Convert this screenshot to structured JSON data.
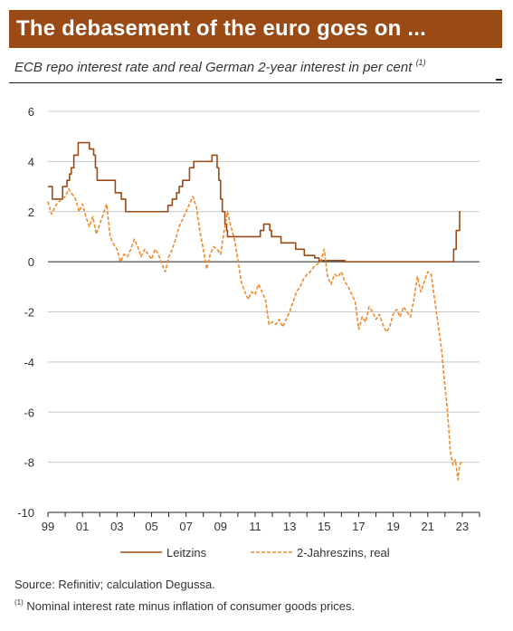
{
  "header": {
    "title": "The debasement of the euro goes on ...",
    "subtitle": "ECB repo interest rate and real German 2-year interest in per cent",
    "subtitle_note": "(1)"
  },
  "footer": {
    "source": "Source: Refinitiv; calculation Degussa.",
    "footnote_mark": "(1)",
    "footnote": "Nominal interest rate minus inflation of consumer goods prices."
  },
  "colors": {
    "title_bg": "#9a4a14",
    "leitzins": "#9a4a14",
    "jahreszins": "#ef8a2e",
    "grid": "#c8c8c8"
  },
  "chart_data": {
    "type": "line",
    "xlim": [
      1999,
      2024
    ],
    "ylim": [
      -10,
      6
    ],
    "x_ticks": [
      1999,
      2001,
      2003,
      2005,
      2007,
      2009,
      2011,
      2013,
      2015,
      2017,
      2019,
      2021,
      2023
    ],
    "x_tick_labels": [
      "99",
      "01",
      "03",
      "05",
      "07",
      "09",
      "11",
      "13",
      "15",
      "17",
      "19",
      "21",
      "23"
    ],
    "y_ticks": [
      6,
      4,
      2,
      0,
      -2,
      -4,
      -6,
      -8,
      -10
    ],
    "grid": true,
    "legend_position": "bottom",
    "series": [
      {
        "name": "Leitzins",
        "style": "solid",
        "step": true,
        "points": [
          [
            1999.0,
            3.0
          ],
          [
            1999.25,
            2.5
          ],
          [
            1999.85,
            3.0
          ],
          [
            2000.1,
            3.25
          ],
          [
            2000.25,
            3.5
          ],
          [
            2000.35,
            3.75
          ],
          [
            2000.5,
            4.25
          ],
          [
            2000.75,
            4.75
          ],
          [
            2001.4,
            4.5
          ],
          [
            2001.65,
            4.25
          ],
          [
            2001.75,
            3.75
          ],
          [
            2001.85,
            3.25
          ],
          [
            2002.9,
            2.75
          ],
          [
            2003.25,
            2.5
          ],
          [
            2003.5,
            2.0
          ],
          [
            2005.95,
            2.25
          ],
          [
            2006.2,
            2.5
          ],
          [
            2006.45,
            2.75
          ],
          [
            2006.6,
            3.0
          ],
          [
            2006.8,
            3.25
          ],
          [
            2007.2,
            3.75
          ],
          [
            2007.45,
            4.0
          ],
          [
            2008.5,
            4.25
          ],
          [
            2008.8,
            3.75
          ],
          [
            2008.9,
            3.25
          ],
          [
            2009.0,
            2.5
          ],
          [
            2009.1,
            2.0
          ],
          [
            2009.25,
            1.5
          ],
          [
            2009.35,
            1.25
          ],
          [
            2009.4,
            1.0
          ],
          [
            2011.3,
            1.25
          ],
          [
            2011.5,
            1.5
          ],
          [
            2011.85,
            1.25
          ],
          [
            2011.95,
            1.0
          ],
          [
            2012.5,
            0.75
          ],
          [
            2013.35,
            0.5
          ],
          [
            2013.85,
            0.25
          ],
          [
            2014.45,
            0.15
          ],
          [
            2014.7,
            0.05
          ],
          [
            2016.2,
            0.0
          ],
          [
            2022.5,
            0.5
          ],
          [
            2022.65,
            1.25
          ],
          [
            2022.85,
            2.0
          ],
          [
            2022.9,
            2.0
          ]
        ]
      },
      {
        "name": "2-Jahreszins, real",
        "style": "dashed",
        "step": false,
        "points": [
          [
            1999.0,
            2.4
          ],
          [
            1999.2,
            1.9
          ],
          [
            1999.5,
            2.3
          ],
          [
            1999.8,
            2.5
          ],
          [
            2000.0,
            2.6
          ],
          [
            2000.2,
            2.9
          ],
          [
            2000.4,
            2.7
          ],
          [
            2000.6,
            2.5
          ],
          [
            2000.8,
            2.0
          ],
          [
            2001.0,
            2.3
          ],
          [
            2001.2,
            1.8
          ],
          [
            2001.4,
            1.4
          ],
          [
            2001.6,
            1.8
          ],
          [
            2001.8,
            1.1
          ],
          [
            2002.0,
            1.5
          ],
          [
            2002.2,
            1.9
          ],
          [
            2002.4,
            2.3
          ],
          [
            2002.6,
            1.0
          ],
          [
            2002.8,
            0.7
          ],
          [
            2003.0,
            0.5
          ],
          [
            2003.2,
            0.0
          ],
          [
            2003.4,
            0.3
          ],
          [
            2003.6,
            0.2
          ],
          [
            2003.8,
            0.5
          ],
          [
            2004.0,
            0.9
          ],
          [
            2004.2,
            0.6
          ],
          [
            2004.4,
            0.2
          ],
          [
            2004.6,
            0.5
          ],
          [
            2004.8,
            0.3
          ],
          [
            2005.0,
            0.1
          ],
          [
            2005.2,
            0.5
          ],
          [
            2005.4,
            0.3
          ],
          [
            2005.6,
            -0.1
          ],
          [
            2005.8,
            -0.4
          ],
          [
            2006.0,
            0.2
          ],
          [
            2006.2,
            0.5
          ],
          [
            2006.4,
            0.9
          ],
          [
            2006.6,
            1.4
          ],
          [
            2006.8,
            1.7
          ],
          [
            2007.0,
            2.0
          ],
          [
            2007.2,
            2.3
          ],
          [
            2007.4,
            2.6
          ],
          [
            2007.6,
            2.2
          ],
          [
            2007.8,
            1.2
          ],
          [
            2008.0,
            0.5
          ],
          [
            2008.2,
            -0.3
          ],
          [
            2008.4,
            0.3
          ],
          [
            2008.6,
            0.6
          ],
          [
            2008.8,
            0.5
          ],
          [
            2009.0,
            0.3
          ],
          [
            2009.2,
            1.2
          ],
          [
            2009.4,
            2.0
          ],
          [
            2009.6,
            1.4
          ],
          [
            2009.8,
            0.9
          ],
          [
            2010.0,
            0.1
          ],
          [
            2010.2,
            -0.8
          ],
          [
            2010.4,
            -1.2
          ],
          [
            2010.6,
            -1.5
          ],
          [
            2010.8,
            -1.2
          ],
          [
            2011.0,
            -1.3
          ],
          [
            2011.2,
            -0.9
          ],
          [
            2011.4,
            -1.2
          ],
          [
            2011.6,
            -1.5
          ],
          [
            2011.8,
            -2.5
          ],
          [
            2012.0,
            -2.4
          ],
          [
            2012.2,
            -2.5
          ],
          [
            2012.4,
            -2.3
          ],
          [
            2012.6,
            -2.6
          ],
          [
            2012.8,
            -2.3
          ],
          [
            2013.0,
            -2.0
          ],
          [
            2013.2,
            -1.6
          ],
          [
            2013.4,
            -1.2
          ],
          [
            2013.6,
            -1.0
          ],
          [
            2013.8,
            -0.7
          ],
          [
            2014.0,
            -0.5
          ],
          [
            2014.2,
            -0.4
          ],
          [
            2014.4,
            -0.2
          ],
          [
            2014.6,
            -0.1
          ],
          [
            2014.8,
            0.0
          ],
          [
            2015.0,
            0.5
          ],
          [
            2015.2,
            -0.6
          ],
          [
            2015.4,
            -0.9
          ],
          [
            2015.6,
            -0.5
          ],
          [
            2015.8,
            -0.6
          ],
          [
            2016.0,
            -0.4
          ],
          [
            2016.2,
            -0.8
          ],
          [
            2016.4,
            -1.0
          ],
          [
            2016.6,
            -1.3
          ],
          [
            2016.8,
            -1.6
          ],
          [
            2017.0,
            -2.7
          ],
          [
            2017.2,
            -2.2
          ],
          [
            2017.4,
            -2.4
          ],
          [
            2017.6,
            -1.8
          ],
          [
            2017.8,
            -2.0
          ],
          [
            2018.0,
            -2.3
          ],
          [
            2018.2,
            -2.1
          ],
          [
            2018.4,
            -2.5
          ],
          [
            2018.6,
            -2.8
          ],
          [
            2018.8,
            -2.6
          ],
          [
            2019.0,
            -2.1
          ],
          [
            2019.2,
            -1.9
          ],
          [
            2019.4,
            -2.2
          ],
          [
            2019.6,
            -1.8
          ],
          [
            2019.8,
            -2.0
          ],
          [
            2020.0,
            -2.2
          ],
          [
            2020.2,
            -1.5
          ],
          [
            2020.4,
            -0.6
          ],
          [
            2020.6,
            -1.2
          ],
          [
            2020.8,
            -0.8
          ],
          [
            2021.0,
            -0.4
          ],
          [
            2021.2,
            -0.5
          ],
          [
            2021.4,
            -1.5
          ],
          [
            2021.6,
            -2.5
          ],
          [
            2021.8,
            -3.5
          ],
          [
            2022.0,
            -5.0
          ],
          [
            2022.15,
            -6.0
          ],
          [
            2022.3,
            -7.5
          ],
          [
            2022.45,
            -8.1
          ],
          [
            2022.6,
            -7.9
          ],
          [
            2022.75,
            -8.7
          ],
          [
            2022.85,
            -8.1
          ],
          [
            2022.95,
            -8.0
          ]
        ]
      }
    ]
  }
}
